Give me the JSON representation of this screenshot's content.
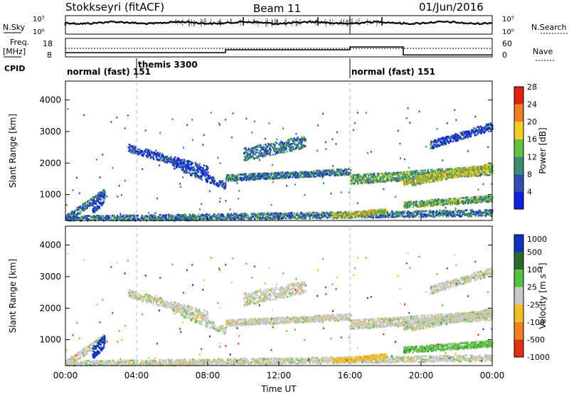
{
  "header": {
    "station": "Stokkseyri (fitACF)",
    "beam": "Beam 11",
    "date": "01/Jun/2016"
  },
  "summary_panel": {
    "left_label_1": "N.Sky",
    "left_label_2": "Freq.",
    "left_label_3": "[MHz]",
    "left_label_4": "CPID",
    "right_label_1": "N.Search",
    "right_label_2": "Nave",
    "nsky_ticks": [
      "10^5",
      "10^0"
    ],
    "nsearch_ticks": [
      "10^5",
      "10^0"
    ],
    "freq_ticks": [
      "18",
      "8"
    ],
    "nave_ticks": [
      "60",
      "0"
    ],
    "cpid_segments": [
      {
        "label": "normal (fast) 151",
        "start_hour": 0,
        "end_hour": 4
      },
      {
        "label": "themis 3300",
        "start_hour": 4,
        "end_hour": 16
      },
      {
        "label": "normal (fast) 151",
        "start_hour": 16,
        "end_hour": 24
      }
    ],
    "freq_levels": [
      {
        "start_hour": 0,
        "end_hour": 9,
        "value": 1
      },
      {
        "start_hour": 9,
        "end_hour": 16,
        "value": 2
      },
      {
        "start_hour": 16,
        "end_hour": 19,
        "value": 3
      },
      {
        "start_hour": 19,
        "end_hour": 24,
        "value": 0.2
      }
    ]
  },
  "chart_data": [
    {
      "type": "heatmap",
      "name": "power",
      "ylabel": "Slant Range [km]",
      "xlabel": "",
      "xlim": [
        0,
        24
      ],
      "ylim": [
        180,
        4600
      ],
      "yticks": [
        1000,
        2000,
        3000,
        4000
      ],
      "colorbar_label": "Power [dB]",
      "colorbar_ticks": [
        "4",
        "8",
        "12",
        "16",
        "20",
        "24",
        "28"
      ],
      "colors": [
        "#1020e0",
        "#2e50b0",
        "#3a8a70",
        "#68c040",
        "#f0d020",
        "#f08020",
        "#e02010"
      ],
      "value_range": [
        0,
        32
      ]
    },
    {
      "type": "heatmap",
      "name": "velocity",
      "ylabel": "Slant Range [km]",
      "xlabel": "Time UT",
      "xlim": [
        0,
        24
      ],
      "ylim": [
        180,
        4600
      ],
      "yticks": [
        1000,
        2000,
        3000,
        4000
      ],
      "xticks": [
        "00:00",
        "04:00",
        "08:00",
        "12:00",
        "16:00",
        "20:00",
        "00:00"
      ],
      "colorbar_label": "Velocity [m s^-1]",
      "colorbar_ticks": [
        "1000",
        "500",
        "100",
        "25",
        "-25",
        "-100",
        "-500",
        "-1000"
      ],
      "colors": [
        "#1030c0",
        "#2c6a30",
        "#56c040",
        "#c8c8c8",
        "#f0c020",
        "#f08020",
        "#e03010"
      ]
    }
  ]
}
